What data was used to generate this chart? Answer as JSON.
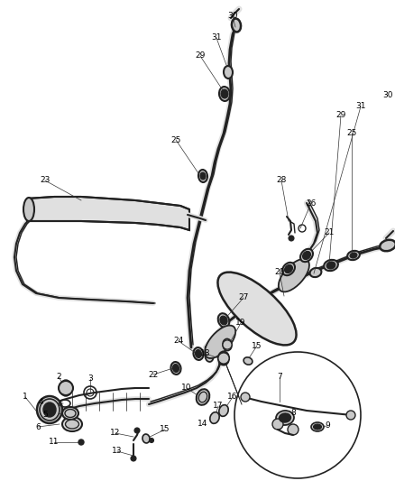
{
  "bg_color": "#ffffff",
  "line_color": "#3a3a3a",
  "fig_width": 4.38,
  "fig_height": 5.33,
  "dpi": 100,
  "label_fontsize": 6.5,
  "pipe_color": "#555555",
  "dark_color": "#222222",
  "gray_fill": "#c8c8c8",
  "light_gray": "#e0e0e0"
}
